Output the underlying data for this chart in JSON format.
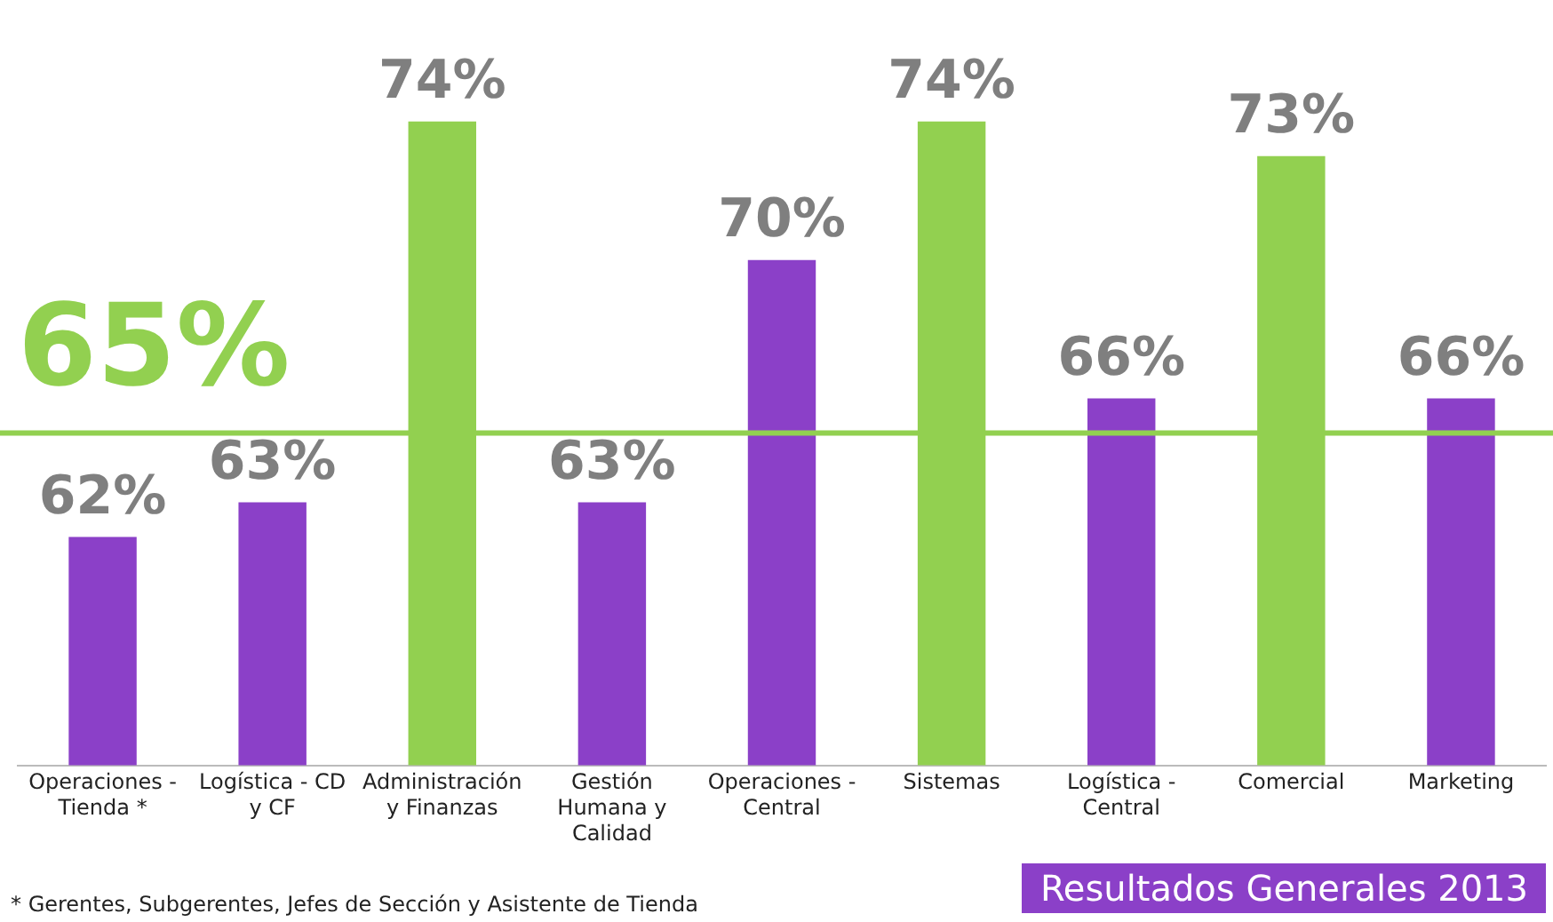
{
  "chart_data": {
    "type": "bar",
    "title": "Resultados Generales 2013",
    "categories": [
      "Operaciones - Tienda *",
      "Logística - CD y CF",
      "Administración y Finanzas",
      "Gestión Humana y Calidad",
      "Operaciones - Central",
      "Sistemas",
      "Logística - Central",
      "Comercial",
      "Marketing"
    ],
    "values": [
      62,
      63,
      74,
      63,
      70,
      74,
      66,
      73,
      66
    ],
    "colors": [
      "#8b40c8",
      "#8b40c8",
      "#92d050",
      "#8b40c8",
      "#8b40c8",
      "#92d050",
      "#8b40c8",
      "#92d050",
      "#8b40c8"
    ],
    "value_labels": [
      "62%",
      "63%",
      "74%",
      "63%",
      "70%",
      "74%",
      "66%",
      "73%",
      "66%"
    ],
    "ref_lines": [
      {
        "axis": "y",
        "value": 65,
        "label": "65%",
        "color": "#92d050"
      }
    ],
    "annotations": [
      "* Gerentes, Subgerentes, Jefes de Sección y Asistente de Tienda"
    ],
    "grid": false,
    "legend": false
  }
}
